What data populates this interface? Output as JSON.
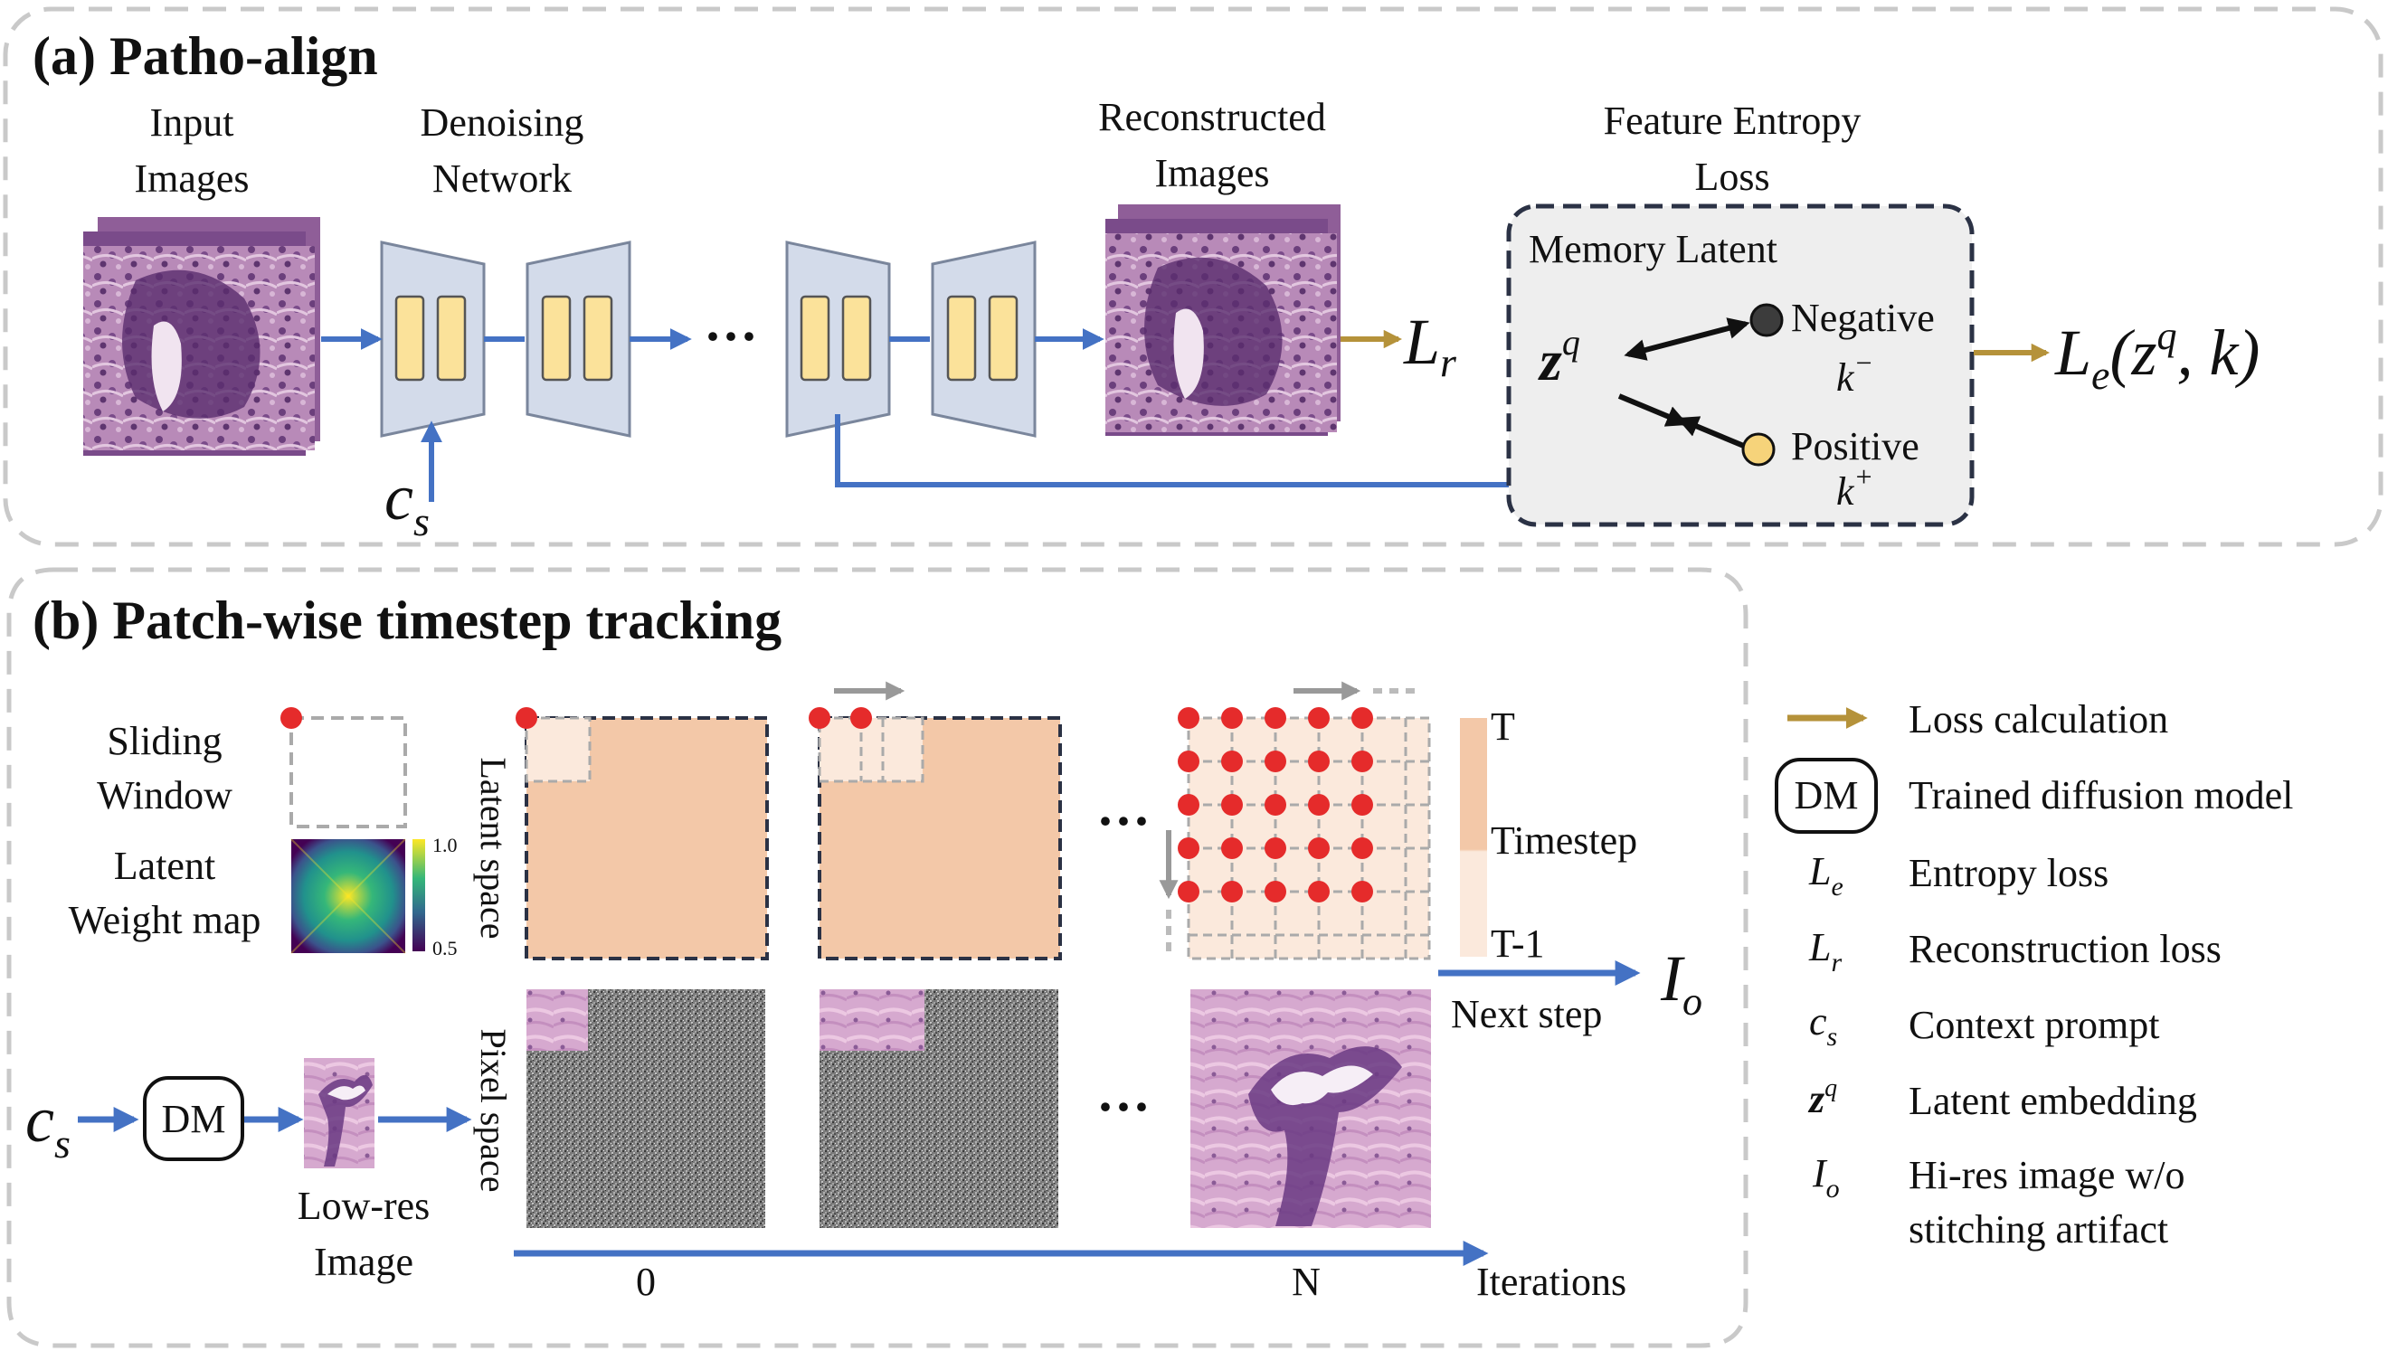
{
  "panel_a": {
    "title": "(a) Patho-align",
    "input_images": [
      "Input",
      "Images"
    ],
    "denoising_network": [
      "Denoising",
      "Network"
    ],
    "reconstructed_images": [
      "Reconstructed",
      "Images"
    ],
    "feature_entropy_loss": [
      "Feature Entropy",
      "Loss"
    ],
    "memory_latent": "Memory Latent",
    "negative": "Negative",
    "positive": "Positive",
    "ellipsis": "···",
    "math": {
      "cs": "c",
      "cs_sub": "s",
      "lr": "L",
      "lr_sub": "r",
      "zq": "z",
      "zq_sup": "q",
      "k_neg": "k",
      "k_neg_sup": "−",
      "k_pos": "k",
      "k_pos_sup": "+",
      "le_expr": "L",
      "le_sub": "e",
      "le_args_open": "(z",
      "le_args_sup": "q",
      "le_args_close": ", k)"
    }
  },
  "panel_b": {
    "title": "(b) Patch-wise timestep tracking",
    "sliding_window": [
      "Sliding",
      "Window"
    ],
    "latent_weight_map": [
      "Latent",
      "Weight map"
    ],
    "colorbar_max": "1.0",
    "colorbar_min": "0.5",
    "latent_space": "Latent space",
    "pixel_space": "Pixel space",
    "dm": "DM",
    "low_res_image": [
      "Low-res",
      "Image"
    ],
    "ellipsis": "···",
    "timestep_T": "T",
    "timestep": "Timestep",
    "timestep_T1": "T-1",
    "next_step": "Next step",
    "io": "I",
    "io_sub": "o",
    "cs": "c",
    "cs_sub": "s",
    "axis_start": "0",
    "axis_end": "N",
    "iterations": "Iterations"
  },
  "legend": {
    "loss_calculation": "Loss calculation",
    "dm": "DM",
    "trained_diffusion_model": "Trained diffusion model",
    "le_sym": "L",
    "le_sub": "e",
    "entropy_loss": "Entropy loss",
    "lr_sym": "L",
    "lr_sub": "r",
    "reconstruction_loss": "Reconstruction loss",
    "cs_sym": "c",
    "cs_sub": "s",
    "context_prompt": "Context prompt",
    "zq_sym": "z",
    "zq_sup": "q",
    "latent_embedding": "Latent embedding",
    "io_sym": "I",
    "io_sub": "o",
    "hires_line1": "Hi-res image w/o",
    "hires_line2": "stitching artifact"
  },
  "colors": {
    "arrow_blue": "#4472c4",
    "loss_gold": "#b5923a",
    "encoder_fill": "#d3dbea",
    "block_yellow": "#fbe29a",
    "latent_fill": "#f3c8a8",
    "latent_light": "#fbe9dc",
    "red_dot": "#e52b2b",
    "negative_dot": "#3c3c3c",
    "positive_dot": "#f6d37a",
    "memory_box": "#eeeeee",
    "tissue": "#b583b4"
  }
}
